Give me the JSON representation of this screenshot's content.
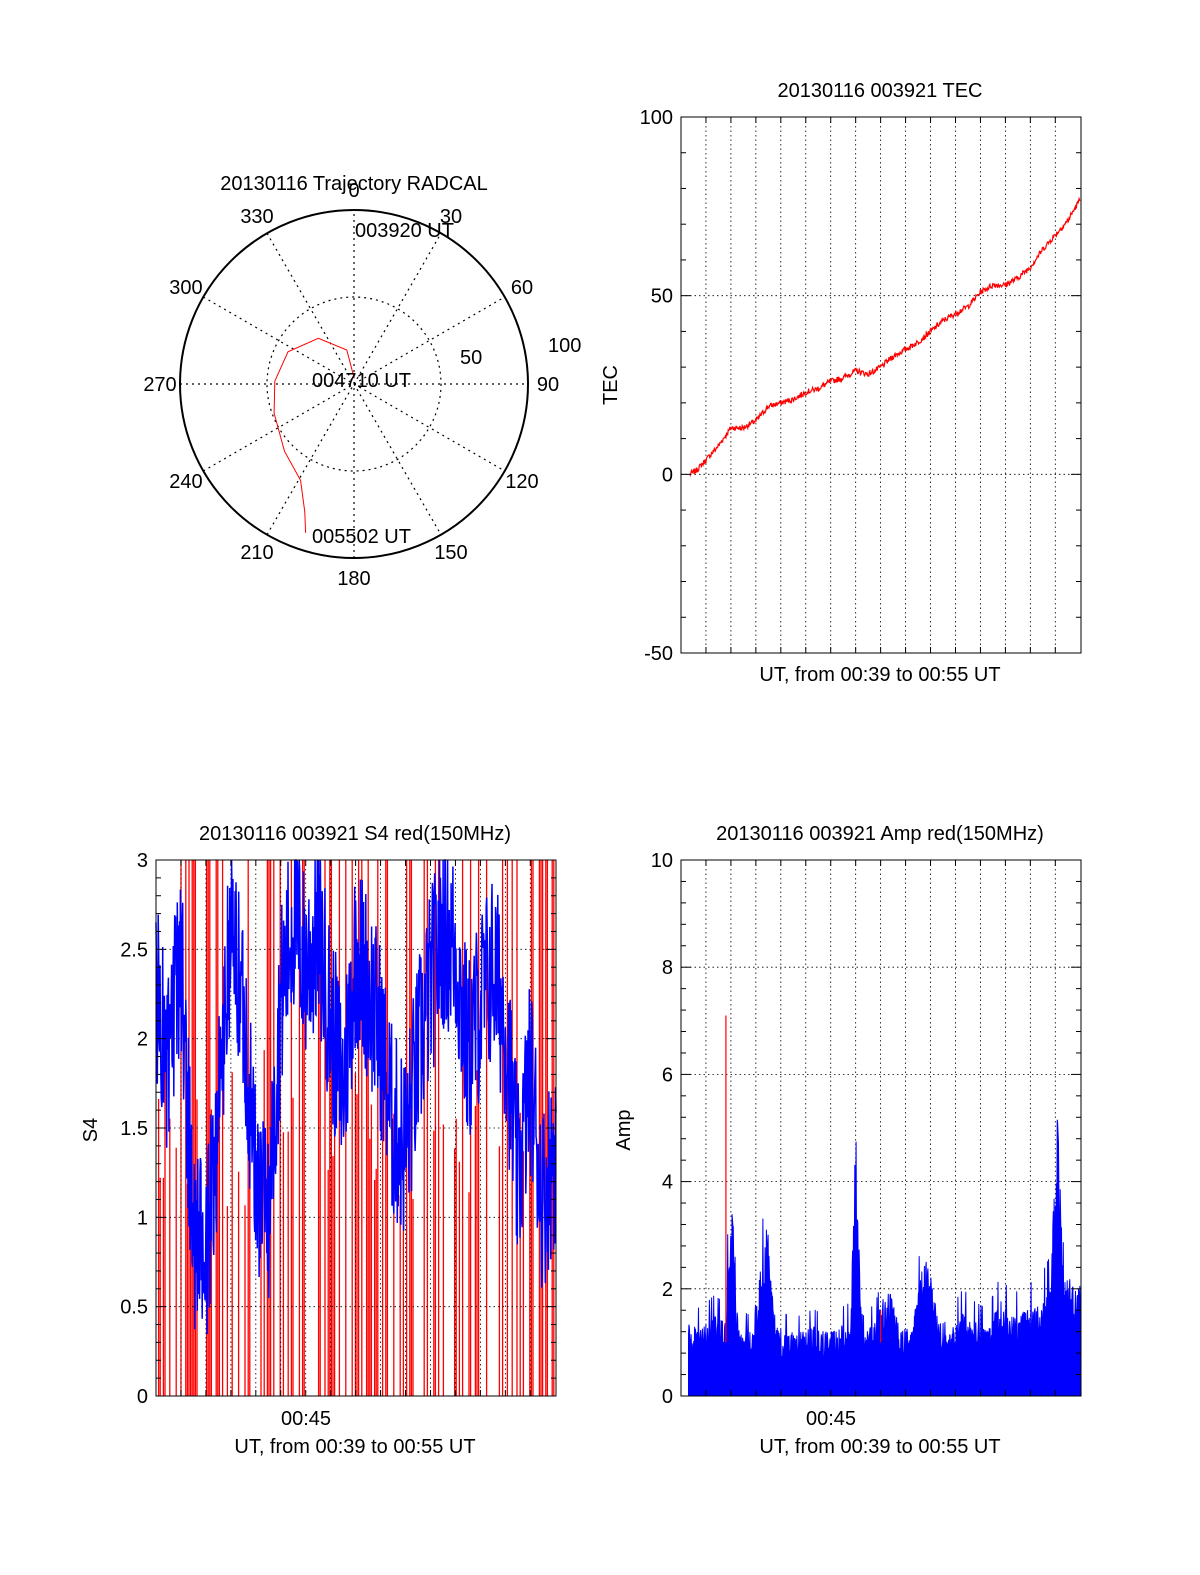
{
  "colors": {
    "primary_trace": "#ff0000",
    "secondary_trace": "#0000ff",
    "axes": "#000000",
    "grid": "#000000"
  },
  "chart_data": [
    {
      "id": "trajectory",
      "type": "polar",
      "title": "20130116 Trajectory RADCAL",
      "azimuth_labels": [
        "0",
        "30",
        "60",
        "90",
        "120",
        "150",
        "180",
        "210",
        "240",
        "270",
        "300",
        "330"
      ],
      "radius_labels": [
        "50",
        "100"
      ],
      "time_labels": {
        "start": "003920 UT",
        "mid": "004710 UT",
        "end": "005502 UT"
      },
      "track": [
        {
          "az": 2,
          "el": 87
        },
        {
          "az": 348,
          "el": 72
        },
        {
          "az": 322,
          "el": 60
        },
        {
          "az": 296,
          "el": 52
        },
        {
          "az": 272,
          "el": 49
        },
        {
          "az": 250,
          "el": 46
        },
        {
          "az": 226,
          "el": 40
        },
        {
          "az": 209,
          "el": 33
        },
        {
          "az": 201,
          "el": 19
        },
        {
          "az": 198,
          "el": 9
        }
      ]
    },
    {
      "id": "tec",
      "type": "line",
      "title": "20130116 003921 TEC",
      "xlabel": "UT, from 00:39 to 00:55 UT",
      "ylabel": "TEC",
      "ylim": [
        -50,
        100
      ],
      "yticks": [
        "-50",
        "0",
        "50",
        "100"
      ],
      "xlim": [
        39.0,
        55.03
      ],
      "grid": true,
      "series": [
        {
          "x": [
            39.35,
            39.6,
            40.0,
            40.5,
            41.0,
            41.5,
            42.0,
            42.5,
            43.0,
            43.5,
            44.0,
            44.5,
            45.0,
            45.5,
            46.0,
            46.5,
            47.0,
            47.5,
            48.0,
            48.5,
            49.0,
            49.5,
            50.0,
            50.5,
            51.0,
            51.5,
            52.0,
            52.5,
            53.0,
            53.5,
            54.0,
            54.5,
            55.0
          ],
          "values": [
            0,
            1,
            4,
            8,
            13,
            13,
            15,
            19,
            20,
            21,
            23,
            24,
            26,
            27,
            29,
            28,
            30,
            33,
            35,
            37,
            40,
            43,
            45,
            47,
            51,
            53,
            53,
            55,
            58,
            63,
            67,
            71,
            77
          ]
        }
      ]
    },
    {
      "id": "s4",
      "type": "line",
      "title": "20130116 003921 S4 red(150MHz)",
      "xlabel": "UT, from 00:39 to 00:55 UT",
      "ylabel": "S4",
      "ylim": [
        0,
        3
      ],
      "yticks": [
        "0",
        "0.5",
        "1",
        "1.5",
        "2",
        "2.5",
        "3"
      ],
      "xtick_labels": [
        "00:45"
      ],
      "xlim": [
        39.0,
        55.03
      ],
      "grid": true,
      "series": [
        {
          "x": [
            39.0,
            39.5,
            40.0,
            40.5,
            41.0,
            41.5,
            42.0,
            42.5,
            43.0,
            43.5,
            44.0,
            44.5,
            45.0,
            45.5,
            46.0,
            46.5,
            47.0,
            47.5,
            48.0,
            48.5,
            49.0,
            49.5,
            50.0,
            50.5,
            51.0,
            51.5,
            52.0,
            52.5,
            53.0,
            53.5,
            54.0,
            54.5,
            55.0
          ],
          "values": [
            2.3,
            1.8,
            2.5,
            0.9,
            0.7,
            1.6,
            2.6,
            2.2,
            1.2,
            1.0,
            2.2,
            2.7,
            2.4,
            2.6,
            2.1,
            1.7,
            2.5,
            2.3,
            2.0,
            1.5,
            1.4,
            1.9,
            2.3,
            2.6,
            2.5,
            1.9,
            2.2,
            2.4,
            2.1,
            1.2,
            1.8,
            1.1,
            1.4
          ]
        }
      ]
    },
    {
      "id": "amp",
      "type": "line",
      "title": "20130116 003921 Amp red(150MHz)",
      "xlabel": "UT, from 00:39 to 00:55 UT",
      "ylabel": "Amp",
      "ylim": [
        0,
        10
      ],
      "yticks": [
        "0",
        "2",
        "4",
        "6",
        "8",
        "10"
      ],
      "xtick_labels": [
        "00:45"
      ],
      "xlim": [
        39.0,
        55.03
      ],
      "grid": true,
      "series": [
        {
          "x": [
            39.3,
            39.8,
            40.3,
            40.8,
            41.0,
            41.3,
            41.8,
            42.3,
            42.5,
            42.8,
            43.3,
            43.8,
            44.3,
            44.8,
            45.3,
            45.8,
            46.0,
            46.3,
            46.8,
            47.3,
            47.8,
            48.3,
            48.8,
            49.3,
            49.8,
            50.3,
            50.8,
            51.3,
            51.8,
            52.3,
            52.8,
            53.3,
            53.8,
            54.1,
            54.3,
            54.8,
            55.0
          ],
          "values": [
            1.4,
            1.3,
            1.5,
            1.4,
            4.3,
            1.3,
            1.2,
            2.7,
            3.5,
            1.3,
            1.2,
            1.2,
            1.3,
            1.2,
            1.3,
            1.4,
            5.0,
            1.2,
            1.4,
            2.1,
            1.2,
            1.4,
            2.8,
            1.5,
            1.3,
            1.6,
            1.4,
            1.3,
            1.8,
            1.5,
            1.7,
            1.7,
            2.1,
            5.7,
            2.3,
            2.2,
            2.3
          ]
        }
      ]
    }
  ]
}
